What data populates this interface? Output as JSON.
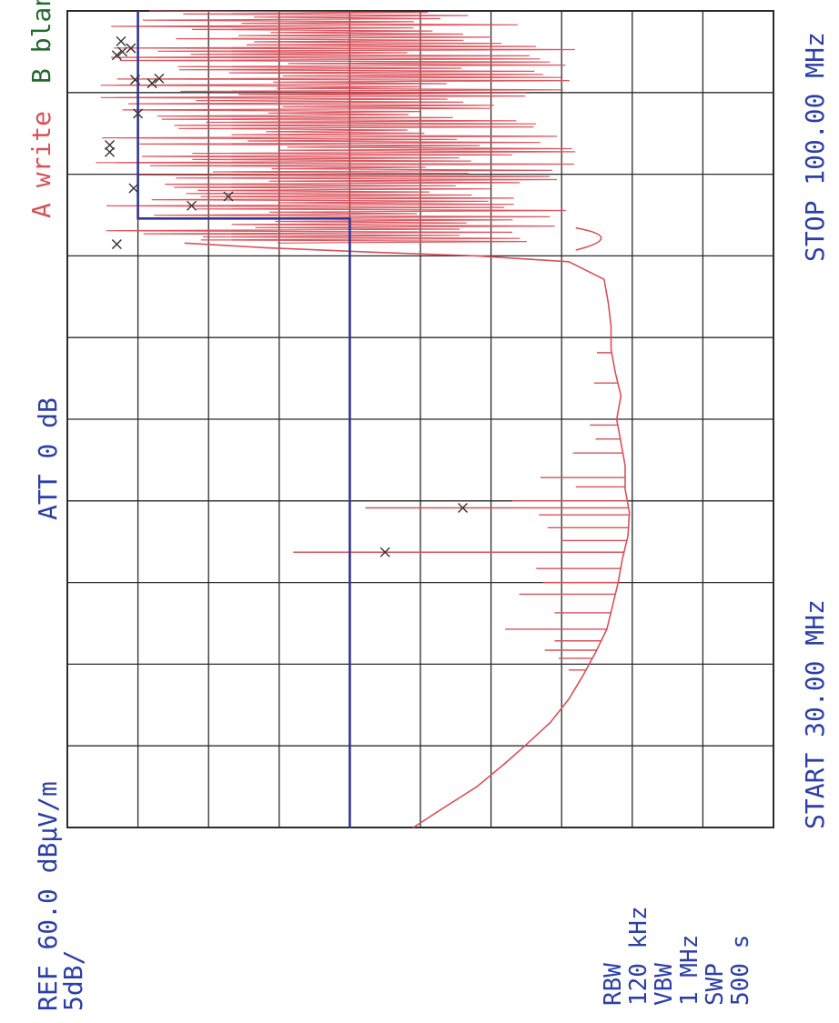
{
  "chart_data": {
    "type": "line",
    "orientation": "rotated-90-ccw",
    "instrument_header": {
      "ref": "REF 60.0 dBμV/m",
      "scale": "5dB/",
      "att": "ATT 0 dB",
      "trace_a": "A write",
      "trace_b": "B blank"
    },
    "settings": {
      "rbw_label": "RBW",
      "rbw_value": "120 kHz",
      "vbw_label": "VBW",
      "vbw_value": "1 MHz",
      "swp_label": "SWP",
      "swp_value": "500 s"
    },
    "x_axis": {
      "start_label": "START 30.00 MHz",
      "stop_label": "STOP 100.00 MHz",
      "range_mhz": [
        30,
        100
      ]
    },
    "y_axis": {
      "ref_level_dbuv_m": 60,
      "db_per_div": 5,
      "range_dbuv_m": [
        10,
        60
      ],
      "divisions": 10
    },
    "grid": true,
    "limit_line": {
      "name": "B",
      "points": [
        [
          30,
          40
        ],
        [
          82.2,
          40
        ],
        [
          82.2,
          55
        ],
        [
          100,
          55
        ]
      ]
    },
    "trace_a_envelope": [
      [
        30.0,
        35.5
      ],
      [
        31.5,
        33.6
      ],
      [
        33.5,
        31.0
      ],
      [
        35.5,
        29.0
      ],
      [
        37.0,
        27.6
      ],
      [
        39.0,
        25.8
      ],
      [
        41.0,
        24.5
      ],
      [
        43.0,
        23.5
      ],
      [
        45.0,
        22.6
      ],
      [
        47.0,
        21.8
      ],
      [
        49.0,
        21.4
      ],
      [
        51.0,
        21.0
      ],
      [
        53.0,
        20.7
      ],
      [
        55.0,
        20.3
      ],
      [
        57.0,
        20.2
      ],
      [
        59.0,
        20.5
      ],
      [
        61.0,
        20.5
      ],
      [
        63.0,
        20.8
      ],
      [
        65.0,
        21.1
      ],
      [
        67.0,
        20.8
      ],
      [
        69.0,
        21.2
      ],
      [
        71.0,
        21.5
      ],
      [
        73.0,
        21.5
      ],
      [
        75.0,
        21.7
      ],
      [
        77.0,
        22.0
      ],
      [
        78.5,
        24.5
      ],
      [
        79.0,
        31.0
      ],
      [
        79.3,
        38.0
      ],
      [
        79.7,
        46.0
      ],
      [
        80.1,
        51.7
      ]
    ],
    "trace_a_spikes": [
      [
        43.5,
        24.5
      ],
      [
        44.5,
        25.2
      ],
      [
        45.2,
        26.2
      ],
      [
        46.0,
        25.5
      ],
      [
        47.0,
        29.0
      ],
      [
        48.4,
        25.5
      ],
      [
        50.0,
        28.0
      ],
      [
        51.0,
        26.3
      ],
      [
        52.2,
        26.8
      ],
      [
        53.6,
        44.0
      ],
      [
        54.6,
        25.0
      ],
      [
        55.7,
        26.0
      ],
      [
        56.8,
        26.6
      ],
      [
        57.4,
        38.9
      ],
      [
        58.0,
        28.5
      ],
      [
        59.2,
        24.0
      ],
      [
        60.0,
        26.5
      ],
      [
        62.1,
        24.2
      ],
      [
        63.3,
        22.6
      ],
      [
        64.5,
        23.0
      ],
      [
        68.1,
        22.7
      ],
      [
        70.7,
        22.5
      ]
    ],
    "dense_region": {
      "range_mhz": [
        80.1,
        100
      ],
      "min_dbuv_m": 24,
      "max_dbuv_m": 58
    },
    "markers": [
      {
        "x": 53.6,
        "y": 37.5
      },
      {
        "x": 57.4,
        "y": 32.0
      },
      {
        "x": 80.0,
        "y": 56.5
      },
      {
        "x": 83.3,
        "y": 51.2
      },
      {
        "x": 84.1,
        "y": 48.6
      },
      {
        "x": 84.8,
        "y": 55.3
      },
      {
        "x": 87.9,
        "y": 57.0
      },
      {
        "x": 88.5,
        "y": 57.0
      },
      {
        "x": 91.2,
        "y": 55.0
      },
      {
        "x": 93.8,
        "y": 54.0
      },
      {
        "x": 94.1,
        "y": 55.2
      },
      {
        "x": 94.2,
        "y": 53.5
      },
      {
        "x": 96.2,
        "y": 56.5
      },
      {
        "x": 96.5,
        "y": 56.1
      },
      {
        "x": 96.8,
        "y": 55.5
      },
      {
        "x": 97.4,
        "y": 56.2
      }
    ],
    "colors": {
      "trace": "#d9505a",
      "limit_line": "#33358f",
      "grid": "#2b2b2b",
      "label": "#2c3fa7",
      "trace_b_label": "#226b2c",
      "marker": "#3a3a3a"
    }
  }
}
